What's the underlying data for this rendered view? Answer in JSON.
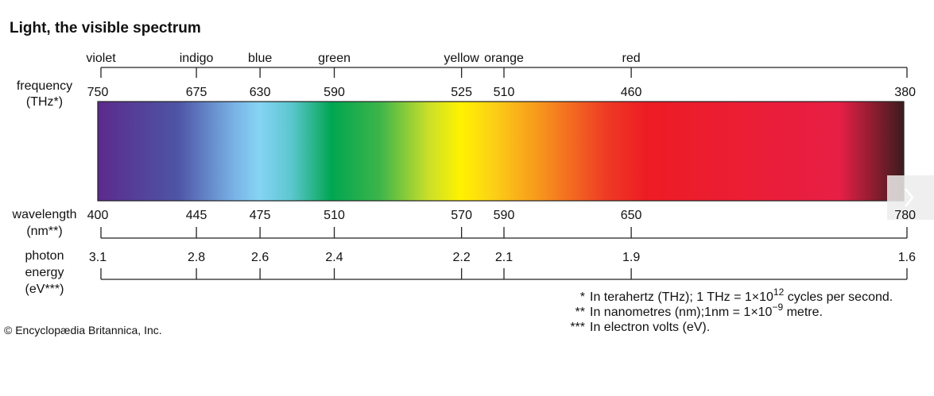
{
  "title": "Light, the visible spectrum",
  "row_labels": {
    "frequency": [
      "frequency",
      "(THz*)"
    ],
    "wavelength": [
      "wavelength",
      "(nm**)"
    ],
    "energy": [
      "photon",
      "energy",
      "(eV***)"
    ]
  },
  "columns": [
    {
      "color": "violet",
      "frequency": 750,
      "wavelength": 400,
      "energy": 3.1
    },
    {
      "color": "indigo",
      "frequency": 675,
      "wavelength": 445,
      "energy": 2.8
    },
    {
      "color": "blue",
      "frequency": 630,
      "wavelength": 475,
      "energy": 2.6
    },
    {
      "color": "green",
      "frequency": 590,
      "wavelength": 510,
      "energy": 2.4
    },
    {
      "color": "yellow",
      "frequency": 525,
      "wavelength": 570,
      "energy": 2.2
    },
    {
      "color": "orange",
      "frequency": 510,
      "wavelength": 590,
      "energy": 2.1
    },
    {
      "color": "red",
      "frequency": 460,
      "wavelength": 650,
      "energy": 1.9
    },
    {
      "color": null,
      "frequency": 380,
      "wavelength": 780,
      "energy": 1.6
    }
  ],
  "footnotes": [
    {
      "marker": "*",
      "text": "In terahertz (THz); 1 THz = 1×10",
      "sup": "12",
      "after": " cycles per second."
    },
    {
      "marker": "**",
      "text": "In nanometres (nm);1nm = 1×10",
      "sup": "−9",
      "after": " metre."
    },
    {
      "marker": "***",
      "text": "In electron volts (eV).",
      "sup": null,
      "after": null
    }
  ],
  "copyright": "© Encyclopædia Britannica, Inc."
}
